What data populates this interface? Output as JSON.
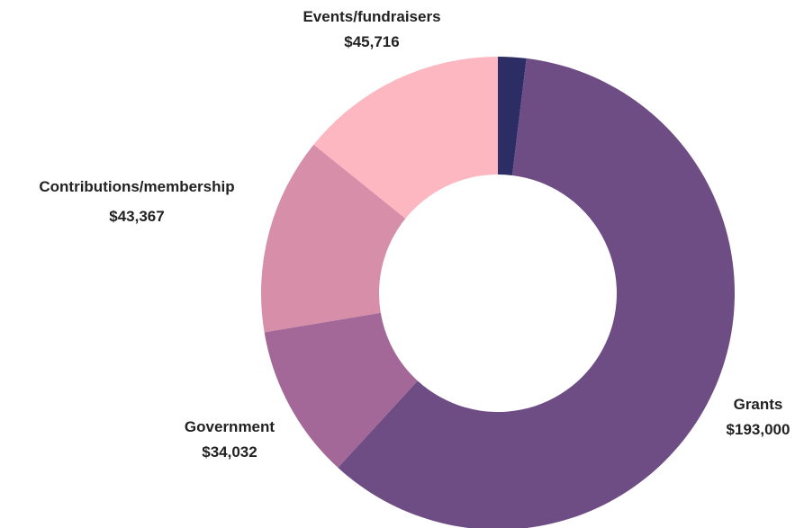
{
  "chart_data": {
    "type": "pie",
    "variant": "donut",
    "start_angle_deg": 0,
    "direction": "clockwise",
    "legend": "none",
    "title": "",
    "slices": [
      {
        "label": "",
        "value_label": "",
        "value": 6200,
        "color": "#2b2d64"
      },
      {
        "label": "Grants",
        "value_label": "$193,000",
        "value": 193000,
        "color": "#6e4c84"
      },
      {
        "label": "Government",
        "value_label": "$34,032",
        "value": 34032,
        "color": "#a36898"
      },
      {
        "label": "Contributions/membership",
        "value_label": "$43,367",
        "value": 43367,
        "color": "#d68ea9"
      },
      {
        "label": "Events/fundraisers",
        "value_label": "$45,716",
        "value": 45716,
        "color": "#fcb7c0"
      }
    ]
  }
}
